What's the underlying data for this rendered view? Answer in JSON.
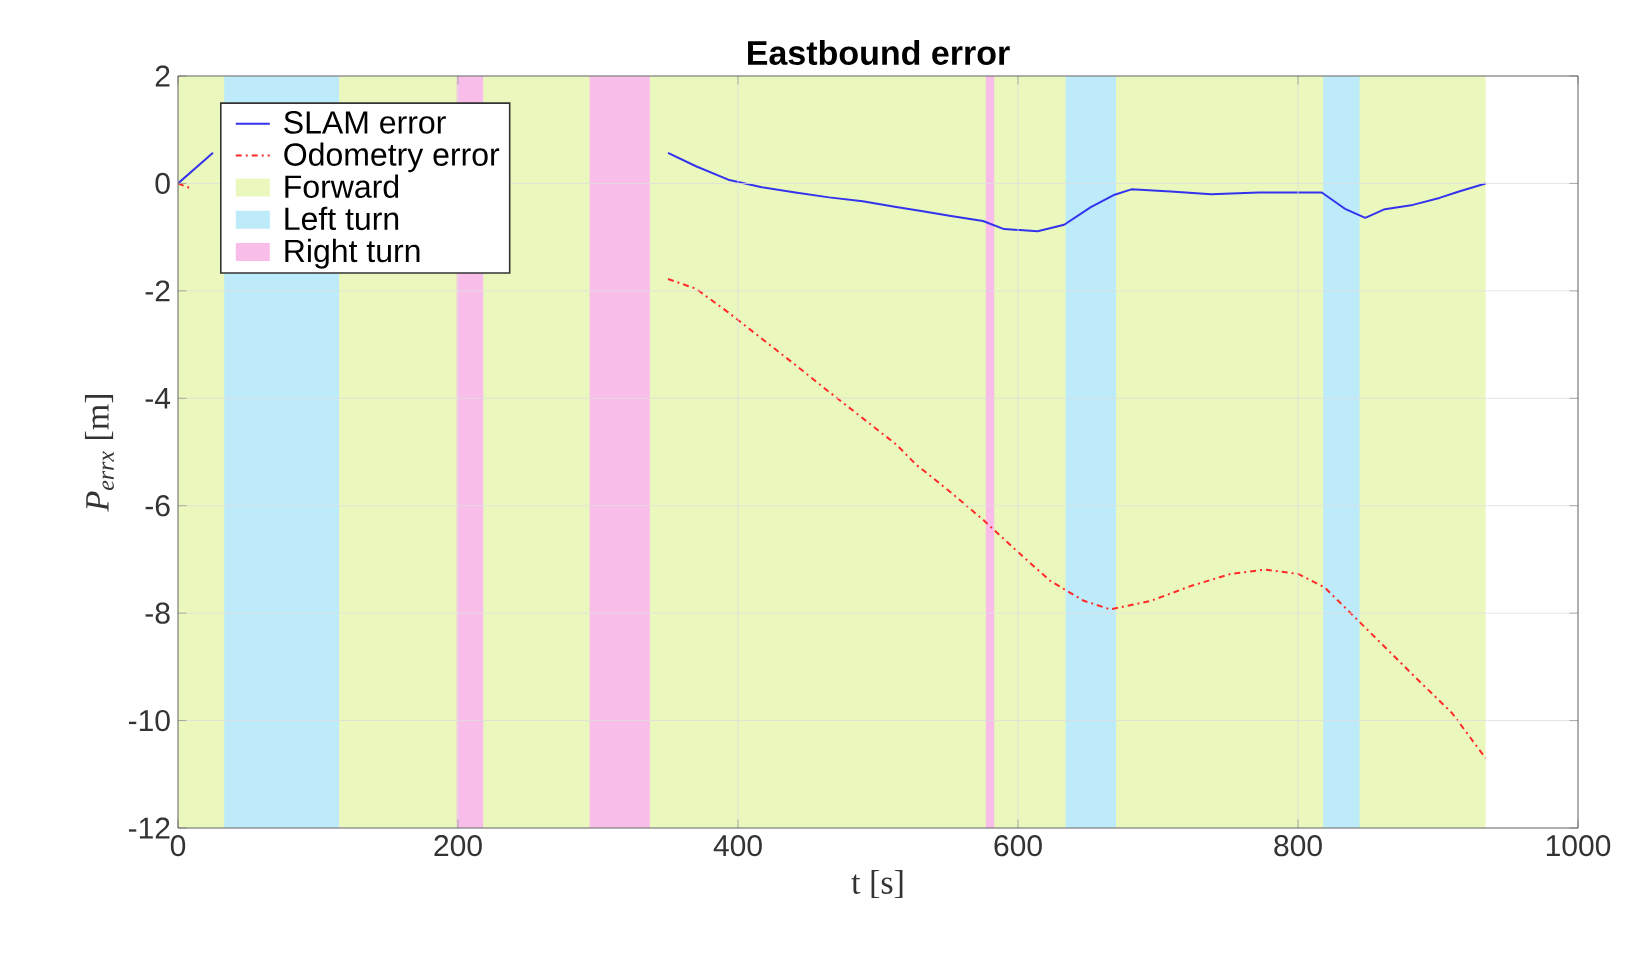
{
  "chart_data": {
    "type": "line",
    "title": "Eastbound error",
    "xlabel": "t [s]",
    "ylabel": "*P$_{errx}$* [m]",
    "x": [
      0,
      25,
      200,
      350,
      370,
      393,
      417,
      441,
      465,
      489,
      513,
      532,
      551,
      575,
      590,
      614,
      633,
      652,
      669,
      681,
      709,
      738,
      772,
      817,
      834,
      848,
      862,
      882,
      901,
      915,
      934
    ],
    "series": [
      {
        "name": "SLAM error",
        "color": "#3333ee",
        "line_style": "solid",
        "values": [
          0,
          0.57,
          null,
          0.57,
          0.32,
          0.07,
          -0.07,
          -0.17,
          -0.26,
          -0.33,
          -0.44,
          -0.52,
          -0.6,
          -0.7,
          -0.85,
          -0.89,
          -0.77,
          -0.44,
          -0.21,
          -0.11,
          -0.15,
          -0.2,
          -0.17,
          -0.17,
          -0.48,
          -0.64,
          -0.48,
          -0.4,
          -0.27,
          -0.15,
          0.0
        ]
      },
      {
        "name": "Odometry error",
        "color": "#ff2a2a",
        "line_style": "dashdot",
        "x": [
          0,
          10,
          200,
          350,
          370,
          393,
          417,
          441,
          465,
          489,
          513,
          527,
          551,
          575,
          599,
          623,
          647,
          666,
          695,
          724,
          752,
          776,
          800,
          819,
          838,
          862,
          886,
          910,
          934
        ],
        "values": [
          0,
          -0.1,
          null,
          -1.78,
          -1.96,
          -2.4,
          -2.89,
          -3.38,
          -3.88,
          -4.37,
          -4.86,
          -5.23,
          -5.73,
          -6.26,
          -6.84,
          -7.4,
          -7.77,
          -7.93,
          -7.77,
          -7.49,
          -7.27,
          -7.19,
          -7.27,
          -7.52,
          -8.01,
          -8.63,
          -9.25,
          -9.86,
          -10.7
        ]
      }
    ],
    "bands": [
      {
        "axis": "x",
        "from": 0,
        "to": 934,
        "label": "Forward",
        "color": "#eaf8bd"
      },
      {
        "axis": "x",
        "from": 33,
        "to": 115,
        "label": "Left turn",
        "color": "#bdebf9"
      },
      {
        "axis": "x",
        "from": 634,
        "to": 670,
        "color": "#bdebf9"
      },
      {
        "axis": "x",
        "from": 818,
        "to": 844,
        "color": "#bdebf9"
      },
      {
        "axis": "x",
        "from": 199,
        "to": 218,
        "label": "Right turn",
        "color": "#f9bdea"
      },
      {
        "axis": "x",
        "from": 294,
        "to": 337,
        "color": "#f9bdea"
      },
      {
        "axis": "x",
        "from": 577,
        "to": 583,
        "color": "#f9bdea"
      }
    ],
    "xlim": [
      0,
      1000
    ],
    "ylim": [
      -12,
      2
    ],
    "xticks": [
      0,
      200,
      400,
      600,
      800,
      1000
    ],
    "yticks": [
      -12,
      -10,
      -8,
      -6,
      -4,
      -2,
      0,
      2
    ],
    "grid": true,
    "legend": "top left",
    "marker": "none"
  }
}
